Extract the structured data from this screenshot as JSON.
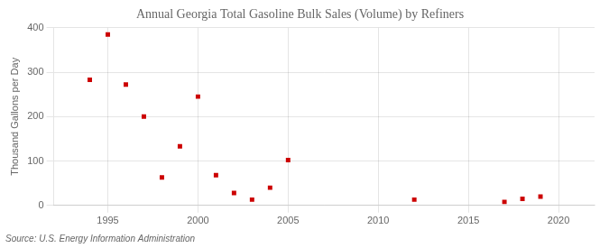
{
  "chart_data": {
    "type": "scatter",
    "title": "Annual Georgia Total Gasoline Bulk Sales (Volume) by Refiners",
    "ylabel": "Thousand Gallons per Day",
    "source": "Source: U.S. Energy Information Administration",
    "x": [
      1994,
      1995,
      1996,
      1997,
      1998,
      1999,
      2000,
      2001,
      2002,
      2003,
      2004,
      2005,
      2012,
      2017,
      2018,
      2019
    ],
    "values": [
      283,
      385,
      272,
      200,
      63,
      133,
      245,
      68,
      28,
      13,
      40,
      102,
      13,
      8,
      15,
      20
    ],
    "color": "#cc0000",
    "marker": "square",
    "xlim": [
      1992,
      2022
    ],
    "xticks": [
      1995,
      2000,
      2005,
      2010,
      2015,
      2020
    ],
    "ylim": [
      0,
      400
    ],
    "yticks": [
      0,
      100,
      200,
      300,
      400
    ],
    "grid": true
  }
}
